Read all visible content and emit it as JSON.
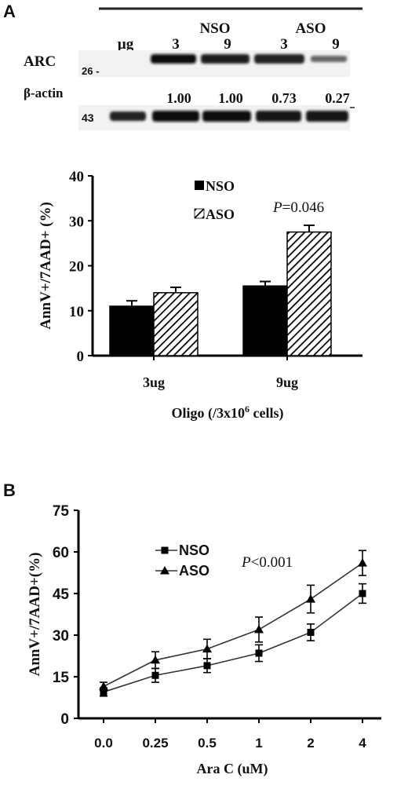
{
  "figure_a": {
    "panel_label": "A",
    "blot": {
      "group_labels": [
        "NSO",
        "ASO"
      ],
      "dose_header": "µg",
      "dose_labels": [
        "3",
        "9",
        "3",
        "9"
      ],
      "arc_label": "ARC",
      "actin_label": "β-actin",
      "marker_26": "26 -",
      "marker_43": "43",
      "ratios": [
        "1.00",
        "1.00",
        "0.73",
        "0.27"
      ]
    }
  },
  "figure_b": {
    "panel_label": "B"
  },
  "chart_data": [
    {
      "type": "bar",
      "categories": [
        "3ug",
        "9ug"
      ],
      "series": [
        {
          "name": "NSO",
          "values": [
            11,
            15.5
          ],
          "errors": [
            1.2,
            1.0
          ],
          "fill": "solid",
          "color": "#000000"
        },
        {
          "name": "ASO",
          "values": [
            14,
            27.5
          ],
          "errors": [
            1.2,
            1.5
          ],
          "fill": "hatched",
          "color": "#000000"
        }
      ],
      "xlabel": "Oligo (/3x10",
      "xlabel_sup": "6",
      "xlabel_tail": " cells)",
      "ylabel": "AnnV+/7AAD+  (%)",
      "ylim": [
        0,
        40
      ],
      "yticks": [
        "0",
        "10",
        "20",
        "30",
        "40"
      ],
      "annotation_p": "P",
      "annotation_val": "=0.046",
      "legend_placement": "top-center",
      "grid": false
    },
    {
      "type": "line",
      "x": [
        "0.0",
        "0.25",
        "0.5",
        "1",
        "2",
        "4"
      ],
      "series": [
        {
          "name": "NSO",
          "marker": "square",
          "values": [
            9.5,
            15.5,
            19,
            23.5,
            31,
            45
          ],
          "errors": [
            1.5,
            2.5,
            2.5,
            3,
            3,
            3.5
          ]
        },
        {
          "name": "ASO",
          "marker": "triangle",
          "values": [
            11.5,
            21,
            25,
            32,
            43,
            56
          ],
          "errors": [
            1.5,
            3,
            3.5,
            4.5,
            5,
            4.5
          ]
        }
      ],
      "xlabel": "Ara C (uM)",
      "ylabel": "AnnV+/7AAD+(%)",
      "ylim": [
        0,
        75
      ],
      "yticks": [
        "0",
        "15",
        "30",
        "45",
        "60",
        "75"
      ],
      "annotation_p": "P",
      "annotation_val": "<0.001",
      "legend_placement": "top-left",
      "grid": false
    }
  ]
}
